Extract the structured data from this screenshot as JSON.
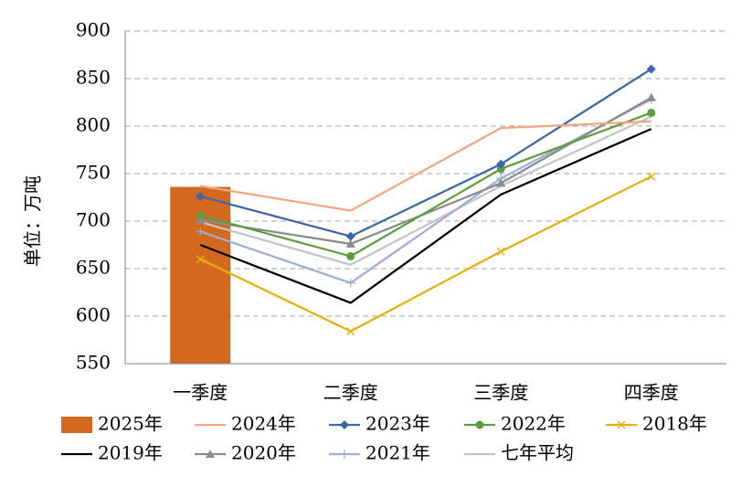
{
  "chart_data": {
    "type": "line",
    "title": "",
    "xlabel": "",
    "ylabel": "单位：万吨",
    "ylim": [
      550,
      900
    ],
    "yticks": [
      550,
      600,
      650,
      700,
      750,
      800,
      850,
      900
    ],
    "grid": "horizontal-dashed",
    "legend_position": "bottom",
    "categories": [
      "一季度",
      "二季度",
      "三季度",
      "四季度"
    ],
    "series": [
      {
        "name": "2025年",
        "kind": "bar",
        "color": "#D2691E",
        "values": [
          736,
          null,
          null,
          null
        ]
      },
      {
        "name": "2024年",
        "kind": "line",
        "marker": "none",
        "color": "#F4A582",
        "values": [
          737,
          711,
          798,
          805
        ]
      },
      {
        "name": "2023年",
        "kind": "line",
        "marker": "diamond",
        "color": "#3E66A8",
        "values": [
          726,
          684,
          760,
          860
        ]
      },
      {
        "name": "2022年",
        "kind": "line",
        "marker": "circle",
        "color": "#5E9E3E",
        "values": [
          706,
          663,
          755,
          814
        ]
      },
      {
        "name": "2018年",
        "kind": "line",
        "marker": "x",
        "color": "#E3B00E",
        "values": [
          660,
          584,
          668,
          747
        ]
      },
      {
        "name": "2019年",
        "kind": "line",
        "marker": "none",
        "color": "#000000",
        "values": [
          675,
          614,
          728,
          797
        ]
      },
      {
        "name": "2020年",
        "kind": "line",
        "marker": "triangle",
        "color": "#8C8C8C",
        "values": [
          701,
          676,
          740,
          830
        ]
      },
      {
        "name": "2021年",
        "kind": "line",
        "marker": "plus",
        "color": "#9FAED6",
        "values": [
          689,
          635,
          745,
          828
        ]
      },
      {
        "name": "七年平均",
        "kind": "line",
        "marker": "none",
        "color": "#C4C4C4",
        "values": [
          699,
          654,
          737,
          810
        ]
      }
    ]
  }
}
